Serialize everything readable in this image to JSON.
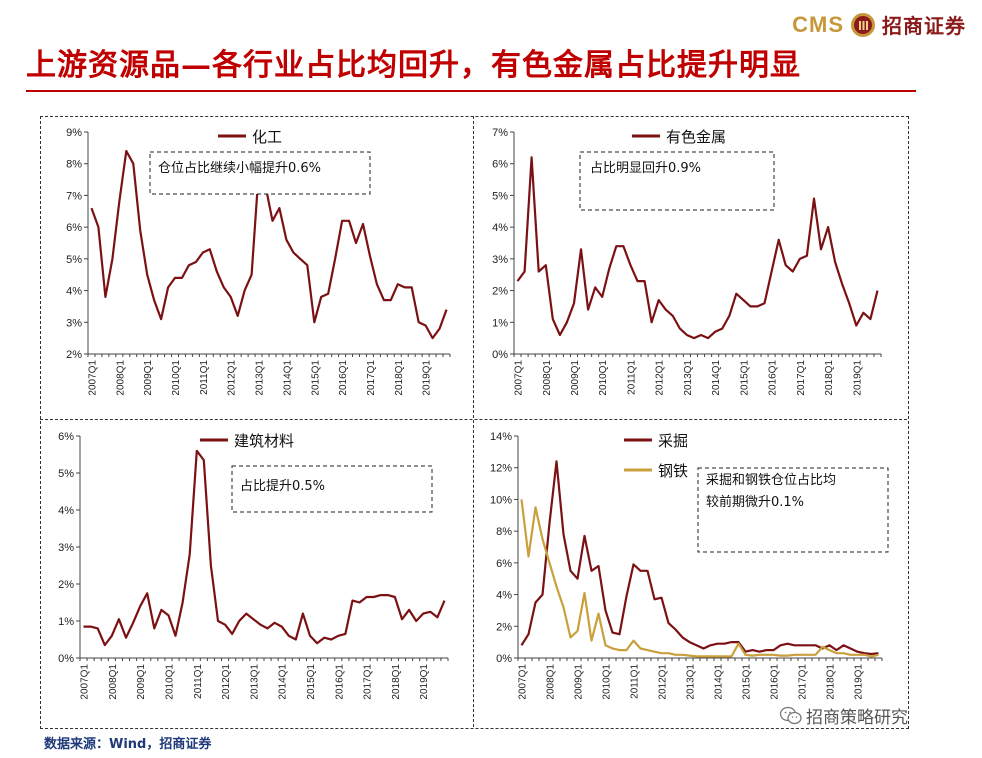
{
  "header": {
    "brand_en": "CMS",
    "brand_cn": "招商证券",
    "title": "上游资源品—各行业占比均回升，有色金属占比提升明显"
  },
  "footer": {
    "source": "数据来源：Wind，招商证券",
    "watermark": "招商策略研究"
  },
  "colors": {
    "series_main": "#7b1113",
    "series_alt": "#c9a03c",
    "title": "#c00000"
  },
  "chart_data": [
    {
      "type": "line",
      "title": "",
      "xlabel": "",
      "ylabel": "",
      "x_ticks": [
        "2007Q1",
        "2008Q1",
        "2009Q1",
        "2010Q1",
        "2011Q1",
        "2012Q1",
        "2013Q1",
        "2014Q1",
        "2015Q1",
        "2016Q1",
        "2017Q1",
        "2018Q1",
        "2019Q1"
      ],
      "y_ticks": [
        "2%",
        "3%",
        "4%",
        "5%",
        "6%",
        "7%",
        "8%",
        "9%"
      ],
      "ylim": [
        2,
        9
      ],
      "legend_position": "top-center",
      "annotation": "仓位占比继续小幅提升0.6%",
      "series": [
        {
          "name": "化工",
          "values": [
            6.6,
            6.0,
            3.8,
            5.0,
            6.8,
            8.4,
            8.0,
            5.9,
            4.5,
            3.7,
            3.1,
            4.1,
            4.4,
            4.4,
            4.8,
            4.9,
            5.2,
            5.3,
            4.6,
            4.1,
            3.8,
            3.2,
            4.0,
            4.5,
            7.7,
            7.3,
            6.2,
            6.6,
            5.6,
            5.2,
            5.0,
            4.8,
            3.0,
            3.8,
            3.9,
            5.0,
            6.2,
            6.2,
            5.5,
            6.1,
            5.1,
            4.2,
            3.7,
            3.7,
            4.2,
            4.1,
            4.1,
            3.0,
            2.9,
            2.5,
            2.8,
            3.4
          ]
        }
      ]
    },
    {
      "type": "line",
      "title": "",
      "xlabel": "",
      "ylabel": "",
      "x_ticks": [
        "2007Q1",
        "2008Q1",
        "2009Q1",
        "2010Q1",
        "2011Q1",
        "2012Q1",
        "2013Q1",
        "2014Q1",
        "2015Q1",
        "2016Q1",
        "2017Q1",
        "2018Q1",
        "2019Q1"
      ],
      "y_ticks": [
        "0%",
        "1%",
        "2%",
        "3%",
        "4%",
        "5%",
        "6%",
        "7%"
      ],
      "ylim": [
        0,
        7
      ],
      "legend_position": "top-center",
      "annotation": "占比明显回升0.9%",
      "series": [
        {
          "name": "有色金属",
          "values": [
            2.3,
            2.6,
            6.2,
            2.6,
            2.8,
            1.1,
            0.6,
            1.0,
            1.6,
            3.3,
            1.4,
            2.1,
            1.8,
            2.7,
            3.4,
            3.4,
            2.8,
            2.3,
            2.3,
            1.0,
            1.7,
            1.4,
            1.2,
            0.8,
            0.6,
            0.5,
            0.6,
            0.5,
            0.7,
            0.8,
            1.2,
            1.9,
            1.7,
            1.5,
            1.5,
            1.6,
            2.6,
            3.6,
            2.8,
            2.6,
            3.0,
            3.1,
            4.9,
            3.3,
            4.0,
            2.9,
            2.2,
            1.6,
            0.9,
            1.3,
            1.1,
            2.0
          ]
        }
      ]
    },
    {
      "type": "line",
      "title": "",
      "xlabel": "",
      "ylabel": "",
      "x_ticks": [
        "2007Q1",
        "2008Q1",
        "2009Q1",
        "2010Q1",
        "2011Q1",
        "2012Q1",
        "2013Q1",
        "2014Q1",
        "2015Q1",
        "2016Q1",
        "2017Q1",
        "2018Q1",
        "2019Q1"
      ],
      "y_ticks": [
        "0%",
        "1%",
        "2%",
        "3%",
        "4%",
        "5%",
        "6%"
      ],
      "ylim": [
        0,
        6
      ],
      "legend_position": "top-center",
      "annotation": "占比提升0.5%",
      "series": [
        {
          "name": "建筑材料",
          "values": [
            0.85,
            0.85,
            0.8,
            0.35,
            0.6,
            1.05,
            0.55,
            0.95,
            1.4,
            1.75,
            0.8,
            1.3,
            1.15,
            0.6,
            1.5,
            2.8,
            5.6,
            5.35,
            2.5,
            1.0,
            0.9,
            0.65,
            1.0,
            1.2,
            1.05,
            0.9,
            0.8,
            0.95,
            0.85,
            0.6,
            0.5,
            1.2,
            0.6,
            0.4,
            0.55,
            0.5,
            0.6,
            0.65,
            1.55,
            1.5,
            1.65,
            1.65,
            1.7,
            1.7,
            1.65,
            1.05,
            1.3,
            1.0,
            1.2,
            1.25,
            1.1,
            1.55
          ]
        }
      ]
    },
    {
      "type": "line",
      "title": "",
      "xlabel": "",
      "ylabel": "",
      "x_ticks": [
        "2007Q1",
        "2008Q1",
        "2009Q1",
        "2010Q1",
        "2011Q1",
        "2012Q1",
        "2013Q1",
        "2014Q1",
        "2015Q1",
        "2016Q1",
        "2017Q1",
        "2018Q1",
        "2019Q1"
      ],
      "y_ticks": [
        "0%",
        "2%",
        "4%",
        "6%",
        "8%",
        "10%",
        "12%",
        "14%"
      ],
      "ylim": [
        0,
        14
      ],
      "legend_position": "top-center",
      "annotation": "采掘和钢铁仓位占比均较前期微升0.1%",
      "annotation_lines": [
        "采掘和钢铁仓位占比均",
        "较前期微升0.1%"
      ],
      "series": [
        {
          "name": "采掘",
          "values": [
            0.8,
            1.5,
            3.5,
            4.0,
            8.5,
            12.4,
            7.8,
            5.5,
            5.0,
            7.7,
            5.5,
            5.8,
            3.0,
            1.6,
            1.5,
            3.9,
            5.9,
            5.5,
            5.5,
            3.7,
            3.8,
            2.2,
            1.8,
            1.3,
            1.0,
            0.8,
            0.6,
            0.8,
            0.9,
            0.9,
            1.0,
            1.0,
            0.4,
            0.5,
            0.4,
            0.5,
            0.5,
            0.8,
            0.9,
            0.8,
            0.8,
            0.8,
            0.8,
            0.6,
            0.8,
            0.5,
            0.8,
            0.6,
            0.4,
            0.3,
            0.25,
            0.3
          ]
        },
        {
          "name": "钢铁",
          "values": [
            10.0,
            6.4,
            9.5,
            7.5,
            6.0,
            4.5,
            3.2,
            1.3,
            1.7,
            4.1,
            1.1,
            2.8,
            0.8,
            0.6,
            0.5,
            0.5,
            1.1,
            0.6,
            0.5,
            0.4,
            0.3,
            0.3,
            0.2,
            0.2,
            0.15,
            0.1,
            0.1,
            0.1,
            0.1,
            0.1,
            0.1,
            0.9,
            0.2,
            0.15,
            0.2,
            0.2,
            0.2,
            0.15,
            0.15,
            0.2,
            0.2,
            0.2,
            0.2,
            0.7,
            0.5,
            0.3,
            0.3,
            0.2,
            0.2,
            0.2,
            0.1,
            0.2
          ]
        }
      ]
    }
  ]
}
